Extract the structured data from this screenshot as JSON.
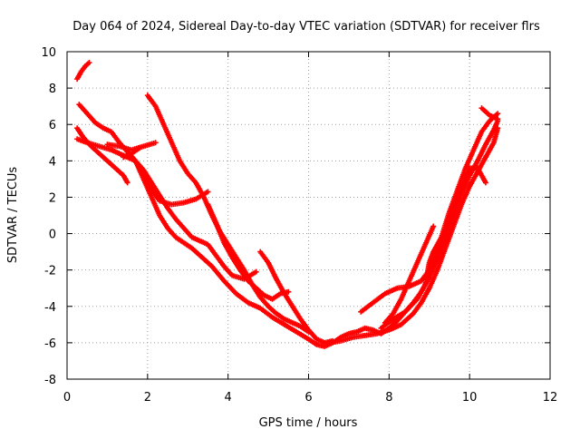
{
  "chart_data": {
    "type": "scatter",
    "title": "Day 064 of 2024, Sidereal Day-to-day VTEC variation (SDTVAR) for receiver flrs",
    "xlabel": "GPS time / hours",
    "ylabel": "SDTVAR / TECUs",
    "xlim": [
      0,
      12
    ],
    "ylim": [
      -8,
      10
    ],
    "x_ticks": [
      "0",
      "2",
      "4",
      "6",
      "8",
      "10",
      "12"
    ],
    "y_ticks": [
      "-8",
      "-6",
      "-4",
      "-2",
      "0",
      "2",
      "4",
      "6",
      "8",
      "10"
    ],
    "grid": true,
    "legend": "none",
    "marker": "plus",
    "series_color": "#ff0000",
    "series": [
      {
        "values": [
          [
            0.25,
            8.5
          ],
          [
            0.35,
            8.9
          ],
          [
            0.45,
            9.2
          ],
          [
            0.55,
            9.4
          ]
        ]
      },
      {
        "values": [
          [
            0.3,
            7.1
          ],
          [
            0.5,
            6.6
          ],
          [
            0.7,
            6.1
          ],
          [
            0.9,
            5.8
          ],
          [
            1.1,
            5.6
          ],
          [
            1.3,
            5.0
          ],
          [
            1.5,
            4.5
          ],
          [
            1.7,
            4.0
          ],
          [
            1.9,
            3.2
          ],
          [
            2.1,
            2.4
          ],
          [
            2.3,
            1.8
          ],
          [
            2.6,
            1.6
          ],
          [
            2.9,
            1.7
          ],
          [
            3.2,
            1.9
          ],
          [
            3.5,
            2.3
          ]
        ]
      },
      {
        "values": [
          [
            0.25,
            5.8
          ],
          [
            0.4,
            5.3
          ],
          [
            0.6,
            4.8
          ],
          [
            0.8,
            4.4
          ],
          [
            1.0,
            4.0
          ],
          [
            1.2,
            3.6
          ],
          [
            1.4,
            3.2
          ],
          [
            1.5,
            2.8
          ]
        ]
      },
      {
        "values": [
          [
            0.25,
            5.2
          ],
          [
            0.5,
            5.0
          ],
          [
            0.8,
            4.8
          ],
          [
            1.1,
            4.6
          ],
          [
            1.4,
            4.3
          ],
          [
            1.7,
            4.0
          ],
          [
            1.9,
            3.5
          ],
          [
            2.1,
            2.8
          ],
          [
            2.3,
            2.1
          ],
          [
            2.5,
            1.4
          ],
          [
            2.7,
            0.8
          ],
          [
            2.9,
            0.3
          ],
          [
            3.1,
            -0.2
          ],
          [
            3.3,
            -0.4
          ],
          [
            3.5,
            -0.6
          ],
          [
            3.7,
            -1.2
          ],
          [
            3.9,
            -1.8
          ],
          [
            4.1,
            -2.3
          ],
          [
            4.4,
            -2.5
          ],
          [
            4.7,
            -2.1
          ]
        ]
      },
      {
        "values": [
          [
            1.0,
            4.9
          ],
          [
            1.3,
            4.8
          ],
          [
            1.6,
            4.6
          ],
          [
            1.9,
            4.8
          ],
          [
            2.2,
            5.0
          ]
        ]
      },
      {
        "values": [
          [
            1.4,
            4.2
          ],
          [
            1.6,
            4.4
          ],
          [
            1.8,
            4.7
          ]
        ]
      },
      {
        "values": [
          [
            2.0,
            7.6
          ],
          [
            2.2,
            7.0
          ],
          [
            2.4,
            6.0
          ],
          [
            2.6,
            5.0
          ],
          [
            2.8,
            4.0
          ],
          [
            3.0,
            3.3
          ],
          [
            3.2,
            2.8
          ],
          [
            3.4,
            2.0
          ],
          [
            3.6,
            1.0
          ],
          [
            3.8,
            0.1
          ],
          [
            4.0,
            -0.6
          ],
          [
            4.2,
            -1.3
          ],
          [
            4.4,
            -2.0
          ],
          [
            4.6,
            -2.8
          ],
          [
            4.8,
            -3.5
          ],
          [
            5.0,
            -4.0
          ],
          [
            5.2,
            -4.4
          ],
          [
            5.4,
            -4.7
          ],
          [
            5.6,
            -4.9
          ],
          [
            5.8,
            -5.1
          ],
          [
            6.0,
            -5.4
          ]
        ]
      },
      {
        "values": [
          [
            1.5,
            4.5
          ],
          [
            1.7,
            4.0
          ],
          [
            1.9,
            3.0
          ],
          [
            2.1,
            2.0
          ],
          [
            2.3,
            1.0
          ],
          [
            2.5,
            0.3
          ],
          [
            2.7,
            -0.2
          ],
          [
            2.9,
            -0.5
          ],
          [
            3.1,
            -0.8
          ],
          [
            3.3,
            -1.2
          ],
          [
            3.6,
            -1.8
          ],
          [
            3.9,
            -2.6
          ],
          [
            4.2,
            -3.3
          ],
          [
            4.5,
            -3.8
          ],
          [
            4.8,
            -4.1
          ],
          [
            5.1,
            -4.6
          ],
          [
            5.4,
            -5.0
          ],
          [
            5.7,
            -5.4
          ],
          [
            6.0,
            -5.8
          ],
          [
            6.2,
            -6.1
          ],
          [
            6.4,
            -6.2
          ],
          [
            6.6,
            -6.0
          ],
          [
            6.8,
            -5.7
          ],
          [
            7.0,
            -5.5
          ],
          [
            7.2,
            -5.4
          ],
          [
            7.4,
            -5.2
          ],
          [
            7.6,
            -5.3
          ],
          [
            7.8,
            -5.5
          ],
          [
            8.0,
            -5.2
          ],
          [
            8.2,
            -4.8
          ],
          [
            8.4,
            -4.3
          ],
          [
            8.6,
            -3.8
          ],
          [
            8.8,
            -3.2
          ],
          [
            9.0,
            -2.4
          ],
          [
            9.2,
            -1.4
          ],
          [
            9.4,
            -0.3
          ],
          [
            9.6,
            1.0
          ],
          [
            9.8,
            2.2
          ],
          [
            10.0,
            3.2
          ],
          [
            10.2,
            4.0
          ],
          [
            10.4,
            4.9
          ],
          [
            10.6,
            5.7
          ],
          [
            10.7,
            6.2
          ]
        ]
      },
      {
        "values": [
          [
            3.5,
            1.6
          ],
          [
            3.7,
            0.6
          ],
          [
            3.9,
            -0.5
          ],
          [
            4.1,
            -1.3
          ],
          [
            4.3,
            -2.0
          ],
          [
            4.5,
            -2.6
          ],
          [
            4.7,
            -3.0
          ],
          [
            4.9,
            -3.4
          ],
          [
            5.1,
            -3.6
          ],
          [
            5.3,
            -3.3
          ],
          [
            5.5,
            -3.2
          ]
        ]
      },
      {
        "values": [
          [
            4.8,
            -1.0
          ],
          [
            5.0,
            -1.6
          ],
          [
            5.2,
            -2.5
          ],
          [
            5.4,
            -3.3
          ],
          [
            5.6,
            -4.0
          ],
          [
            5.8,
            -4.7
          ],
          [
            6.0,
            -5.3
          ],
          [
            6.2,
            -5.8
          ],
          [
            6.4,
            -6.0
          ],
          [
            6.6,
            -5.9
          ]
        ]
      },
      {
        "values": [
          [
            6.5,
            -6.0
          ],
          [
            6.8,
            -5.9
          ],
          [
            7.1,
            -5.7
          ],
          [
            7.4,
            -5.6
          ],
          [
            7.7,
            -5.5
          ],
          [
            8.0,
            -5.3
          ],
          [
            8.3,
            -5.0
          ],
          [
            8.6,
            -4.4
          ],
          [
            8.8,
            -3.8
          ],
          [
            9.0,
            -3.0
          ],
          [
            9.2,
            -2.0
          ],
          [
            9.4,
            -0.8
          ],
          [
            9.6,
            0.4
          ],
          [
            9.8,
            1.6
          ],
          [
            10.0,
            2.6
          ],
          [
            10.2,
            3.4
          ],
          [
            10.4,
            4.2
          ],
          [
            10.6,
            5.0
          ],
          [
            10.7,
            5.8
          ]
        ]
      },
      {
        "values": [
          [
            7.3,
            -4.3
          ],
          [
            7.6,
            -3.8
          ],
          [
            7.9,
            -3.3
          ],
          [
            8.2,
            -3.0
          ],
          [
            8.5,
            -2.9
          ],
          [
            8.8,
            -2.6
          ],
          [
            9.0,
            -2.0
          ],
          [
            9.2,
            -1.0
          ],
          [
            9.4,
            0.2
          ],
          [
            9.6,
            1.4
          ],
          [
            9.8,
            2.6
          ],
          [
            10.0,
            3.6
          ],
          [
            10.2,
            3.6
          ],
          [
            10.4,
            2.8
          ]
        ]
      },
      {
        "values": [
          [
            7.8,
            -5.2
          ],
          [
            8.1,
            -4.7
          ],
          [
            8.4,
            -4.3
          ],
          [
            8.7,
            -3.6
          ],
          [
            8.9,
            -2.8
          ],
          [
            9.0,
            -1.6
          ],
          [
            9.1,
            -1.0
          ],
          [
            9.3,
            -0.2
          ],
          [
            9.5,
            1.2
          ],
          [
            9.7,
            2.4
          ],
          [
            9.9,
            3.6
          ],
          [
            10.1,
            4.6
          ],
          [
            10.3,
            5.6
          ],
          [
            10.5,
            6.2
          ],
          [
            10.7,
            6.6
          ]
        ]
      },
      {
        "values": [
          [
            7.9,
            -4.9
          ],
          [
            8.1,
            -4.4
          ],
          [
            8.3,
            -3.6
          ],
          [
            8.5,
            -2.6
          ],
          [
            8.7,
            -1.6
          ],
          [
            8.9,
            -0.6
          ],
          [
            9.1,
            0.4
          ]
        ]
      },
      {
        "values": [
          [
            10.3,
            6.9
          ],
          [
            10.5,
            6.5
          ],
          [
            10.7,
            6.3
          ]
        ]
      }
    ]
  }
}
